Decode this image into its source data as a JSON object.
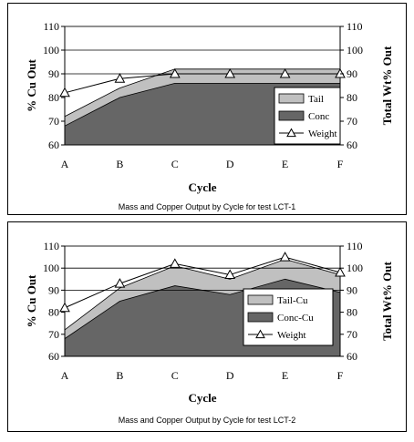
{
  "chart_data": [
    {
      "type": "area",
      "caption": "Mass and Copper Output by Cycle for test LCT-1",
      "xlabel": "Cycle",
      "ylabel": "% Cu Out",
      "y2label": "Total Wt% Out",
      "categories": [
        "A",
        "B",
        "C",
        "D",
        "E",
        "F"
      ],
      "ylim": [
        60,
        110
      ],
      "y2lim": [
        60,
        110
      ],
      "yticks": [
        60,
        70,
        80,
        90,
        100,
        110
      ],
      "gridlines": [
        90,
        100,
        110
      ],
      "legend_placement": "bottom-right",
      "series": [
        {
          "name": "Tail",
          "kind": "stacked-area",
          "color": "#c0c0c0",
          "values": [
            72,
            84,
            92,
            92,
            92,
            92
          ]
        },
        {
          "name": "Conc",
          "kind": "area",
          "color": "#666666",
          "values": [
            68,
            80,
            86,
            86,
            86,
            86
          ]
        },
        {
          "name": "Weight",
          "kind": "line",
          "marker": "triangle",
          "color": "#000000",
          "axis": "right",
          "values": [
            82,
            88,
            90,
            90,
            90,
            90
          ]
        }
      ]
    },
    {
      "type": "area",
      "caption": "Mass and Copper Output by Cycle for test LCT-2",
      "xlabel": "Cycle",
      "ylabel": "% Cu Out",
      "y2label": "Total Wt% Out",
      "categories": [
        "A",
        "B",
        "C",
        "D",
        "E",
        "F"
      ],
      "ylim": [
        60,
        110
      ],
      "y2lim": [
        60,
        110
      ],
      "yticks": [
        60,
        70,
        80,
        90,
        100,
        110
      ],
      "gridlines": [
        90,
        100,
        110
      ],
      "legend_placement": "bottom-right",
      "series": [
        {
          "name": "Tail-Cu",
          "kind": "stacked-area",
          "color": "#c0c0c0",
          "values": [
            72,
            91,
            101,
            95,
            104,
            97
          ]
        },
        {
          "name": "Conc-Cu",
          "kind": "area",
          "color": "#666666",
          "values": [
            68,
            85,
            92,
            88,
            95,
            89
          ]
        },
        {
          "name": "Weight",
          "kind": "line",
          "marker": "triangle",
          "color": "#000000",
          "axis": "right",
          "values": [
            82,
            93,
            102,
            97,
            105,
            98
          ]
        }
      ]
    }
  ]
}
